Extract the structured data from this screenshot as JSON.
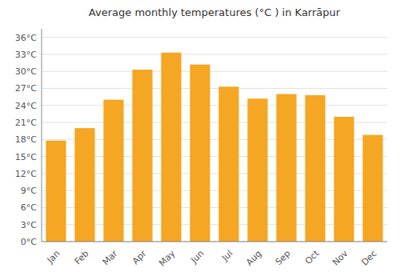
{
  "chart_data": {
    "type": "bar",
    "title": "Average monthly temperatures (°C ) in Karrāpur",
    "categories": [
      "Jan",
      "Feb",
      "Mar",
      "Apr",
      "May",
      "Jun",
      "Jul",
      "Aug",
      "Sep",
      "Oct",
      "Nov",
      "Dec"
    ],
    "values": [
      17.8,
      20.0,
      25.0,
      30.3,
      33.3,
      31.2,
      27.3,
      25.2,
      26.0,
      25.8,
      22.0,
      18.8
    ],
    "color": "#F5A623",
    "ylim": [
      0,
      37.5
    ],
    "yticks": [
      {
        "value": 0,
        "label": "0°C"
      },
      {
        "value": 3,
        "label": "3°C"
      },
      {
        "value": 6,
        "label": "6°C"
      },
      {
        "value": 9,
        "label": "9°C"
      },
      {
        "value": 12,
        "label": "12°C"
      },
      {
        "value": 15,
        "label": "15°C"
      },
      {
        "value": 18,
        "label": "18°C"
      },
      {
        "value": 21,
        "label": "21°C"
      },
      {
        "value": 24,
        "label": "24°C"
      },
      {
        "value": 27,
        "label": "27°C"
      },
      {
        "value": 30,
        "label": "30°C"
      },
      {
        "value": 33,
        "label": "33°C"
      },
      {
        "value": 36,
        "label": "36°C"
      }
    ],
    "grid": true
  }
}
